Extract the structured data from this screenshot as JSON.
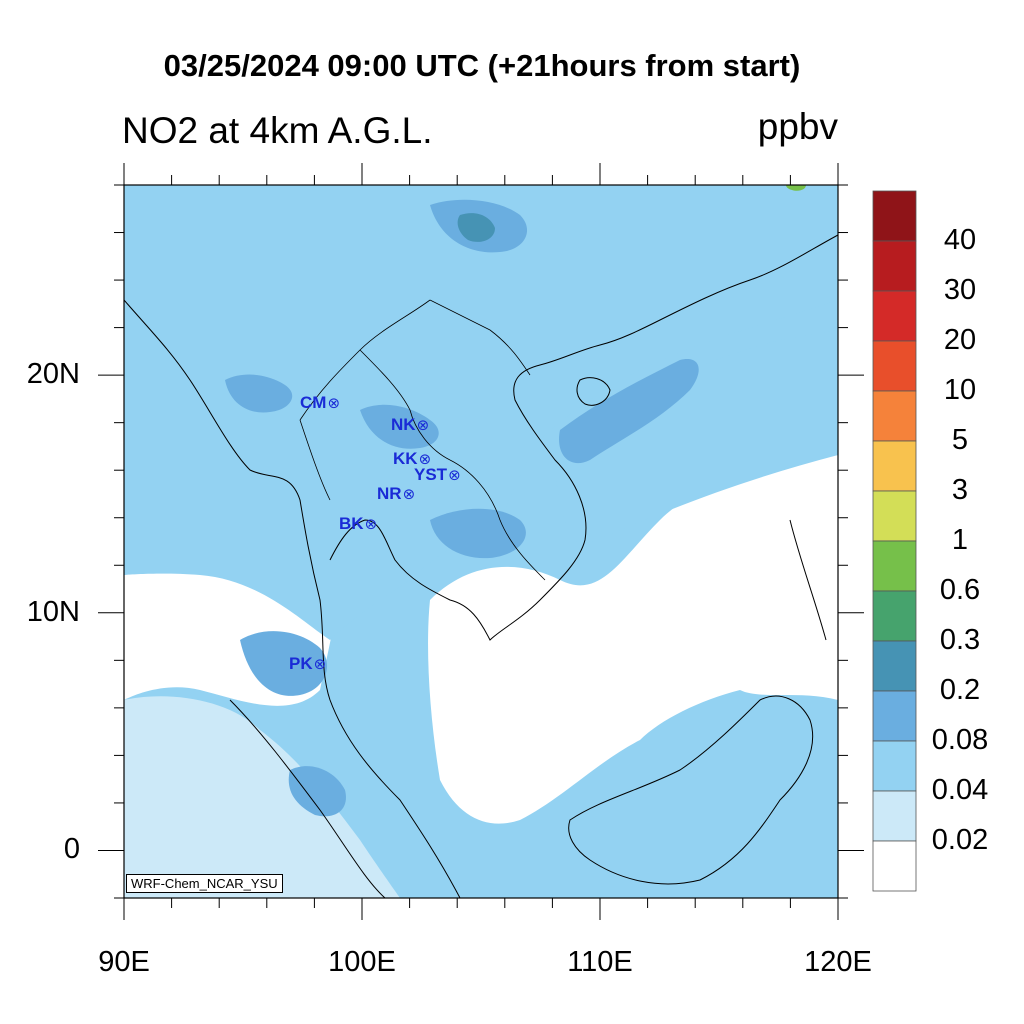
{
  "title": "03/25/2024 09:00 UTC (+21hours from start)",
  "subtitle": "NO2 at 4km A.G.L.",
  "units": "ppbv",
  "credit": "WRF-Chem_NCAR_YSU",
  "axes": {
    "lat_labels": [
      "20N",
      "10N",
      "0"
    ],
    "lat_values": [
      20,
      10,
      0
    ],
    "lon_labels": [
      "90E",
      "100E",
      "110E",
      "120E"
    ],
    "lon_values": [
      90,
      100,
      110,
      120
    ],
    "lon_range": [
      90,
      120
    ],
    "lat_range": [
      -2,
      28
    ]
  },
  "stations": [
    {
      "code": "CM",
      "symbol": "⊗"
    },
    {
      "code": "NK",
      "symbol": "⊗"
    },
    {
      "code": "KK",
      "symbol": "⊗"
    },
    {
      "code": "YST",
      "symbol": "⊗"
    },
    {
      "code": "NR",
      "symbol": "⊗"
    },
    {
      "code": "BK",
      "symbol": "⊗"
    },
    {
      "code": "PK",
      "symbol": "⊗"
    }
  ],
  "colorbar": {
    "labels": [
      "40",
      "30",
      "20",
      "10",
      "5",
      "3",
      "1",
      "0.6",
      "0.3",
      "0.2",
      "0.08",
      "0.04",
      "0.02"
    ],
    "colors": [
      "#8f1418",
      "#b71c1f",
      "#d42a28",
      "#e84f2b",
      "#f5823a",
      "#f8c24e",
      "#d3de57",
      "#76c04a",
      "#46a36d",
      "#4693b4",
      "#6aaee0",
      "#93d2f2",
      "#cce9f8",
      "#ffffff"
    ]
  },
  "fill_colors": {
    "lightest": "#cce9f8",
    "light": "#93d2f2",
    "medium": "#6aaee0",
    "dark": "#4693b4",
    "green": "#76c04a",
    "station_text": "#1a2bd6"
  }
}
